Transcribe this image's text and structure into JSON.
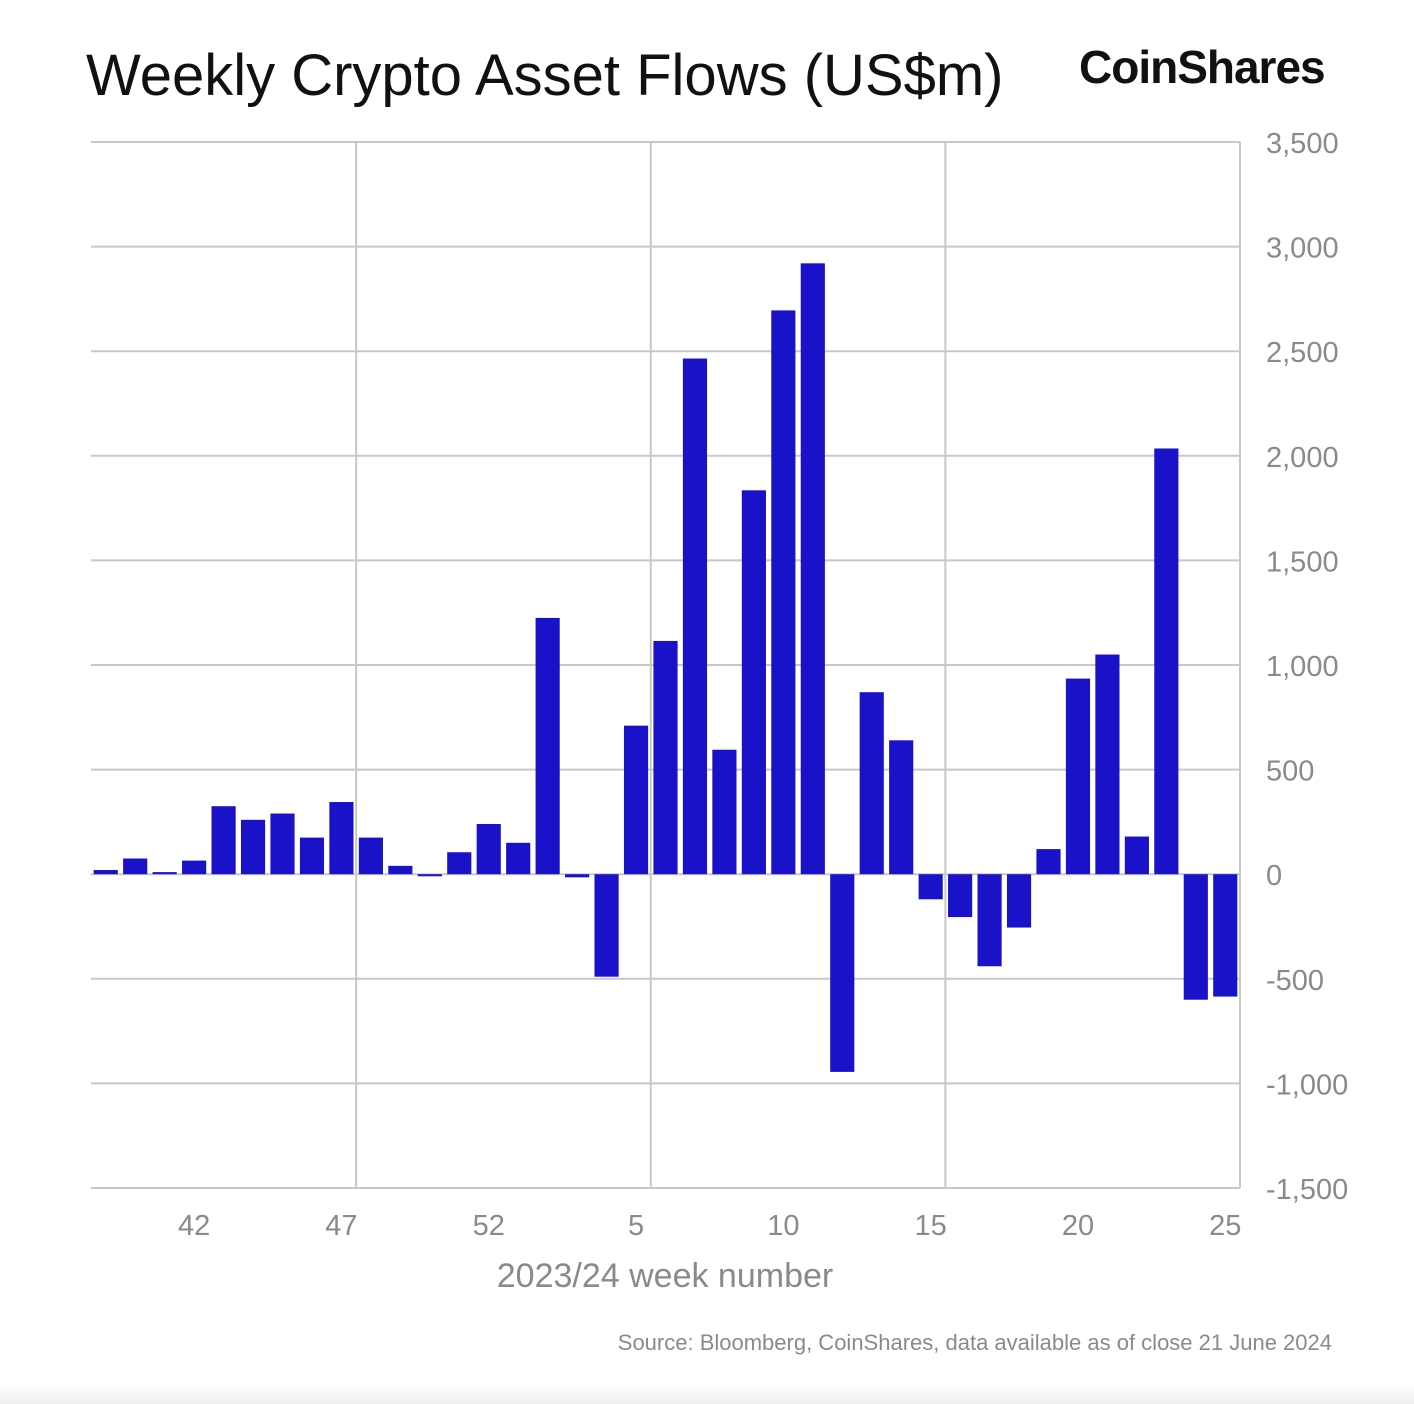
{
  "header": {
    "title": "Weekly Crypto Asset Flows (US$m)",
    "brand": "CoinShares"
  },
  "footer": {
    "source": "Source: Bloomberg, CoinShares, data available as of close 21 June 2024"
  },
  "colors": {
    "bar": "#1a12c8",
    "grid": "#c8c8c8",
    "axis_text": "#8a8a8a"
  },
  "chart_data": {
    "type": "bar",
    "title": "Weekly Crypto Asset Flows (US$m)",
    "xlabel": "2023/24 week number",
    "ylabel": "",
    "ylim": [
      -1500,
      3500
    ],
    "y_ticks": [
      3500,
      3000,
      2500,
      2000,
      1500,
      1000,
      500,
      0,
      -500,
      -1000,
      -1500
    ],
    "y_tick_labels": [
      "3,500",
      "3,000",
      "2,500",
      "2,000",
      "1,500",
      "1,000",
      "500",
      "0",
      "-500",
      "-1,000",
      "-1,500"
    ],
    "x_tick_labels": [
      {
        "label": "42",
        "index": 3
      },
      {
        "label": "47",
        "index": 8
      },
      {
        "label": "52",
        "index": 13
      },
      {
        "label": "5",
        "index": 18
      },
      {
        "label": "10",
        "index": 23
      },
      {
        "label": "15",
        "index": 28
      },
      {
        "label": "20",
        "index": 33
      },
      {
        "label": "25",
        "index": 38
      }
    ],
    "vertical_gridlines_after_index": [
      8.5,
      18.5,
      28.5
    ],
    "categories": [
      "39",
      "40",
      "41",
      "42",
      "43",
      "44",
      "45",
      "46",
      "47",
      "48",
      "49",
      "50",
      "51",
      "52",
      "1",
      "2",
      "3",
      "4",
      "5",
      "6",
      "7",
      "8",
      "9",
      "10",
      "11",
      "12",
      "13",
      "14",
      "15",
      "16",
      "17",
      "18",
      "19",
      "20",
      "21",
      "22",
      "23",
      "24",
      "25"
    ],
    "values": [
      20,
      75,
      10,
      65,
      325,
      260,
      290,
      175,
      345,
      175,
      40,
      -10,
      105,
      240,
      150,
      1225,
      -15,
      -490,
      710,
      1115,
      2465,
      595,
      1835,
      2695,
      2920,
      -945,
      870,
      640,
      -120,
      -205,
      -440,
      -255,
      120,
      935,
      1050,
      180,
      2035,
      -600,
      -585
    ]
  }
}
